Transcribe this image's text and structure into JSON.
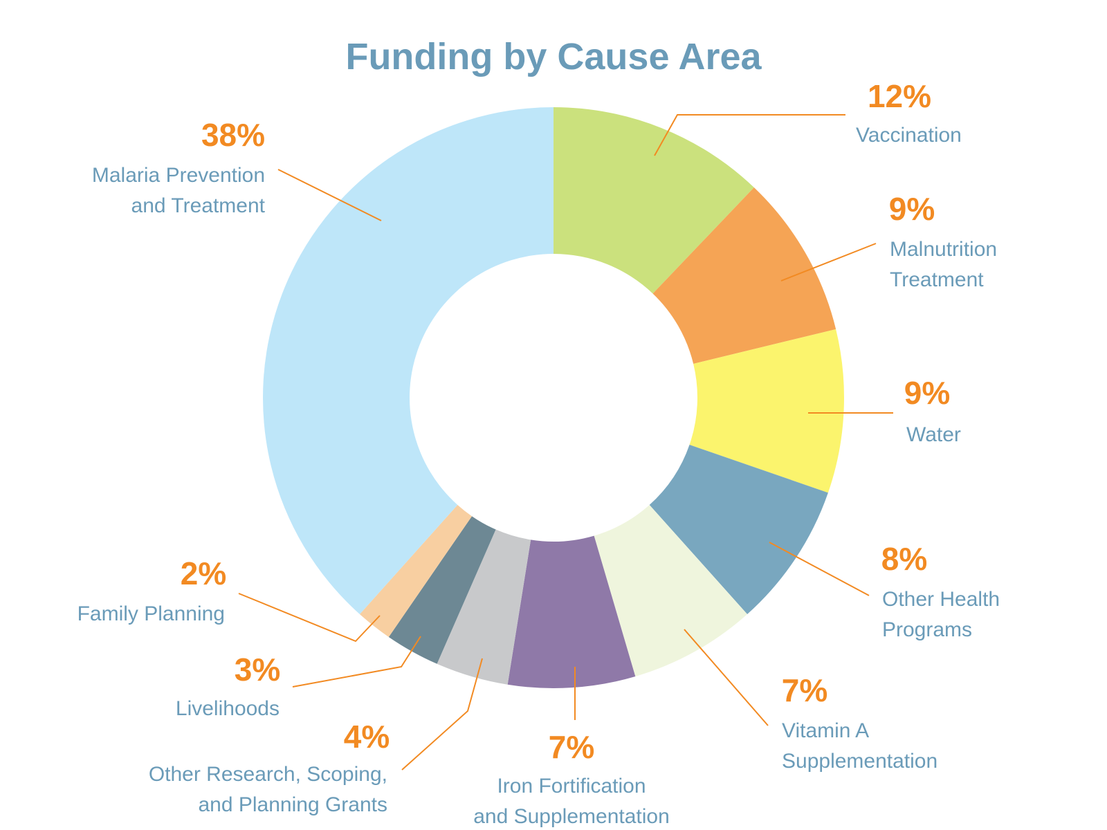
{
  "chart_data": {
    "type": "pie",
    "donut": true,
    "title": "Funding by Cause Area",
    "slices": [
      {
        "label": "Vaccination",
        "label_lines": [
          "Vaccination"
        ],
        "value": 12,
        "pct_label": "12%",
        "color": "#cbe17d"
      },
      {
        "label": "Malnutrition Treatment",
        "label_lines": [
          "Malnutrition",
          "Treatment"
        ],
        "value": 9,
        "pct_label": "9%",
        "color": "#f5a455"
      },
      {
        "label": "Water",
        "label_lines": [
          "Water"
        ],
        "value": 9,
        "pct_label": "9%",
        "color": "#fbf46d"
      },
      {
        "label": "Other Health Programs",
        "label_lines": [
          "Other Health",
          "Programs"
        ],
        "value": 8,
        "pct_label": "8%",
        "color": "#79a7bf"
      },
      {
        "label": "Vitamin A Supplementation",
        "label_lines": [
          "Vitamin A",
          "Supplementation"
        ],
        "value": 7,
        "pct_label": "7%",
        "color": "#eff5dd"
      },
      {
        "label": "Iron Fortification and Supplementation",
        "label_lines": [
          "Iron Fortification",
          "and Supplementation"
        ],
        "value": 7,
        "pct_label": "7%",
        "color": "#8f79a8"
      },
      {
        "label": "Other Research, Scoping, and Planning Grants",
        "label_lines": [
          "Other Research, Scoping,",
          "and Planning Grants"
        ],
        "value": 4,
        "pct_label": "4%",
        "color": "#c8c9cb"
      },
      {
        "label": "Livelihoods",
        "label_lines": [
          "Livelihoods"
        ],
        "value": 3,
        "pct_label": "3%",
        "color": "#6d8894"
      },
      {
        "label": "Family Planning",
        "label_lines": [
          "Family Planning"
        ],
        "value": 2,
        "pct_label": "2%",
        "color": "#f8cfa1"
      },
      {
        "label": "Malaria Prevention and Treatment",
        "label_lines": [
          "Malaria Prevention",
          "and Treatment"
        ],
        "value": 38,
        "pct_label": "38%",
        "color": "#bee6f9"
      }
    ]
  }
}
